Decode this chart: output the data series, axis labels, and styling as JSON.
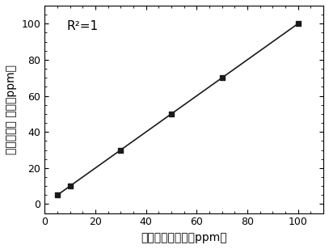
{
  "x": [
    5,
    10,
    30,
    50,
    70,
    100
  ],
  "y": [
    5,
    10,
    30,
    50,
    70,
    100
  ],
  "xlabel": "锂含量的参考値（ppm）",
  "ylabel": "锂含量的预 测値（ppm）",
  "annotation": "R²=1",
  "xlim": [
    0,
    110
  ],
  "ylim": [
    -5,
    110
  ],
  "xticks": [
    0,
    20,
    40,
    60,
    80,
    100
  ],
  "yticks": [
    0,
    20,
    40,
    60,
    80,
    100
  ],
  "marker": "s",
  "marker_color": "#1a1a1a",
  "line_color": "#1a1a1a",
  "marker_size": 5,
  "line_width": 1.2,
  "background_color": "#ffffff",
  "annotation_fontsize": 11,
  "label_fontsize": 10,
  "tick_fontsize": 9
}
